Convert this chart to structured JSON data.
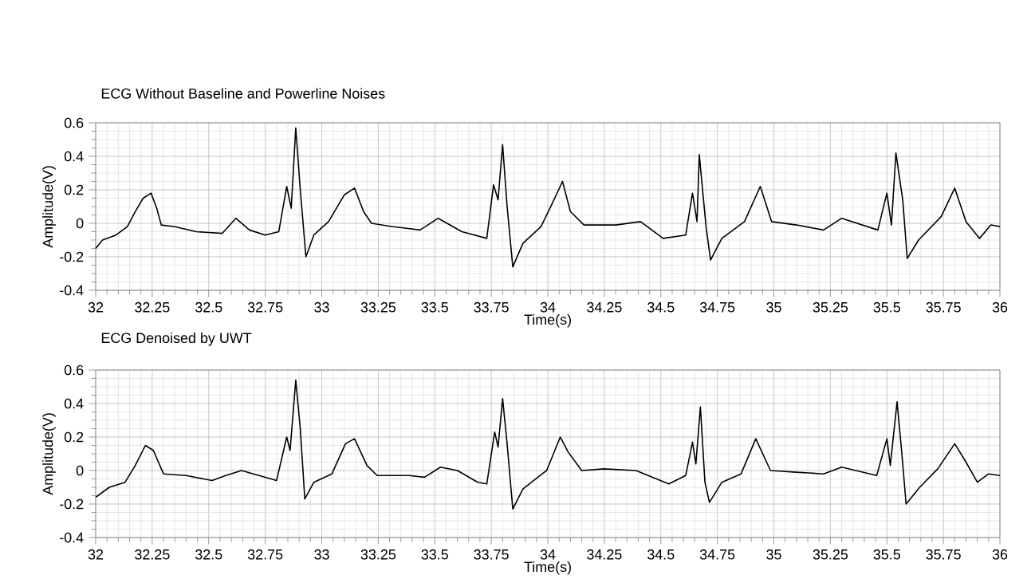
{
  "chart_data": [
    {
      "type": "line",
      "title": "ECG Without Baseline and Powerline Noises",
      "xlabel": "Time(s)",
      "ylabel": "Amplitude(V)",
      "color": "#000000",
      "grid": true,
      "marker": "none",
      "line_style": "solid",
      "xlim": [
        32,
        36
      ],
      "xticks": [
        32,
        32.25,
        32.5,
        32.75,
        33,
        33.25,
        33.5,
        33.75,
        34,
        34.25,
        34.5,
        34.75,
        35,
        35.25,
        35.5,
        35.75,
        36
      ],
      "ylim": [
        -0.4,
        0.6
      ],
      "yticks": [
        -0.4,
        -0.2,
        0,
        0.2,
        0.4,
        0.6
      ],
      "x": [
        32.0,
        32.03,
        32.09,
        32.14,
        32.175,
        32.21,
        32.245,
        32.27,
        32.29,
        32.35,
        32.445,
        32.56,
        32.62,
        32.68,
        32.75,
        32.81,
        32.845,
        32.865,
        32.885,
        32.905,
        32.93,
        32.965,
        33.03,
        33.1,
        33.145,
        33.185,
        33.22,
        33.315,
        33.435,
        33.515,
        33.62,
        33.73,
        33.76,
        33.78,
        33.8,
        33.82,
        33.845,
        33.89,
        33.97,
        34.02,
        34.065,
        34.1,
        34.16,
        34.3,
        34.41,
        34.51,
        34.61,
        34.64,
        34.66,
        34.67,
        34.7,
        34.72,
        34.77,
        34.87,
        34.94,
        34.99,
        35.1,
        35.22,
        35.3,
        35.46,
        35.5,
        35.52,
        35.54,
        35.57,
        35.59,
        35.64,
        35.74,
        35.8,
        35.85,
        35.91,
        35.96,
        36.0
      ],
      "values": [
        -0.15,
        -0.1,
        -0.07,
        -0.02,
        0.07,
        0.15,
        0.18,
        0.09,
        -0.01,
        -0.02,
        -0.05,
        -0.06,
        0.03,
        -0.04,
        -0.07,
        -0.05,
        0.22,
        0.09,
        0.57,
        0.2,
        -0.2,
        -0.07,
        0.01,
        0.17,
        0.21,
        0.07,
        0,
        -0.02,
        -0.04,
        0.03,
        -0.05,
        -0.09,
        0.23,
        0.14,
        0.47,
        0.1,
        -0.26,
        -0.12,
        -0.02,
        0.12,
        0.25,
        0.07,
        -0.01,
        -0.01,
        0.01,
        -0.09,
        -0.07,
        0.18,
        0.01,
        0.41,
        -0.02,
        -0.22,
        -0.09,
        0.01,
        0.22,
        0.01,
        -0.01,
        -0.04,
        0.03,
        -0.04,
        0.18,
        -0.01,
        0.42,
        0.14,
        -0.21,
        -0.1,
        0.04,
        0.21,
        0.01,
        -0.09,
        -0.01,
        -0.02
      ]
    },
    {
      "type": "line",
      "title": "ECG Denoised by UWT",
      "xlabel": "Time(s)",
      "ylabel": "Amplitude(V)",
      "color": "#000000",
      "grid": true,
      "marker": "none",
      "line_style": "solid",
      "xlim": [
        32,
        36
      ],
      "xticks": [
        32,
        32.25,
        32.5,
        32.75,
        33,
        33.25,
        33.5,
        33.75,
        34,
        34.25,
        34.5,
        34.75,
        35,
        35.25,
        35.5,
        35.75,
        36
      ],
      "ylim": [
        -0.4,
        0.6
      ],
      "yticks": [
        -0.4,
        -0.2,
        0,
        0.2,
        0.4,
        0.6
      ],
      "x": [
        32.0,
        32.06,
        32.13,
        32.175,
        32.22,
        32.255,
        32.3,
        32.4,
        32.515,
        32.575,
        32.645,
        32.8,
        32.845,
        32.86,
        32.885,
        32.905,
        32.925,
        32.965,
        33.045,
        33.105,
        33.145,
        33.2,
        33.245,
        33.385,
        33.455,
        33.525,
        33.6,
        33.69,
        33.73,
        33.765,
        33.78,
        33.8,
        33.82,
        33.845,
        33.89,
        33.975,
        33.995,
        34.055,
        34.09,
        34.15,
        34.25,
        34.39,
        34.535,
        34.61,
        34.64,
        34.655,
        34.675,
        34.695,
        34.715,
        34.77,
        34.855,
        34.92,
        34.985,
        35.1,
        35.22,
        35.3,
        35.455,
        35.5,
        35.515,
        35.545,
        35.565,
        35.585,
        35.645,
        35.725,
        35.8,
        35.85,
        35.9,
        35.95,
        36.0
      ],
      "values": [
        -0.16,
        -0.1,
        -0.07,
        0.03,
        0.15,
        0.12,
        -0.02,
        -0.03,
        -0.06,
        -0.03,
        0,
        -0.06,
        0.2,
        0.12,
        0.54,
        0.25,
        -0.17,
        -0.07,
        -0.02,
        0.16,
        0.19,
        0.03,
        -0.03,
        -0.03,
        -0.04,
        0.02,
        0,
        -0.07,
        -0.08,
        0.23,
        0.14,
        0.43,
        0.16,
        -0.23,
        -0.11,
        -0.02,
        0,
        0.2,
        0.11,
        0,
        0.01,
        0,
        -0.08,
        -0.03,
        0.17,
        0.04,
        0.38,
        -0.07,
        -0.19,
        -0.07,
        -0.02,
        0.19,
        0,
        -0.01,
        -0.02,
        0.02,
        -0.03,
        0.19,
        0.03,
        0.41,
        0.12,
        -0.2,
        -0.1,
        0.01,
        0.16,
        0.05,
        -0.07,
        -0.02,
        -0.03
      ]
    }
  ]
}
